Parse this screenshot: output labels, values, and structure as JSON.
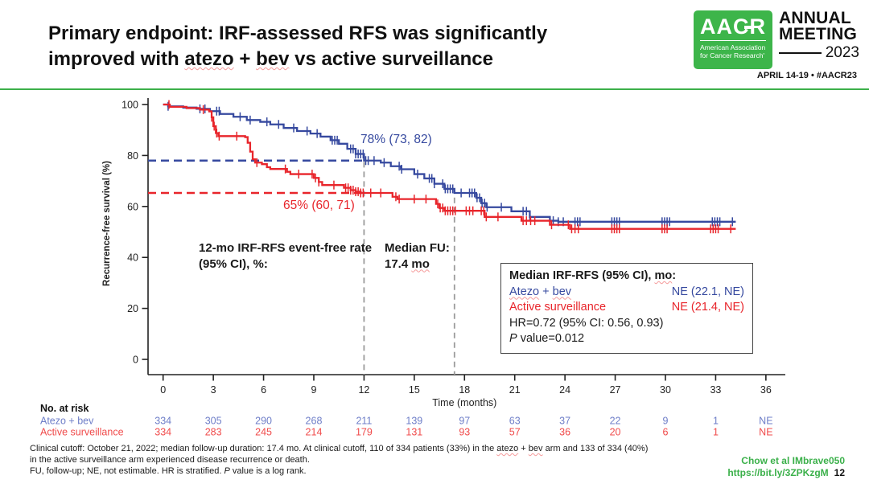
{
  "header": {
    "title_line1": "Primary endpoint: IRF-assessed RFS was significantly",
    "title_line2_prefix": "improved with ",
    "title_atezo": "atezo",
    "title_plus": " + ",
    "title_bev": "bev",
    "title_line2_suffix": " vs active surveillance"
  },
  "logo": {
    "acronym": "AACR",
    "tagline_line1": "American Association",
    "tagline_line2": "for Cancer Research'",
    "meeting_word1": "ANNUAL",
    "meeting_word2": "MEETING",
    "year": "2023",
    "dates": "APRIL 14-19 • #AACR23",
    "green": "#3db54a"
  },
  "rule_color": "#3cb04a",
  "annotations": {
    "atezo_rate": "78% (73, 82)",
    "surveillance_rate": "65% (60, 71)",
    "rate_label": "12-mo IRF-RFS event-free rate (95% CI), %:",
    "median_fu_line1": "Median FU:",
    "median_fu_value": "17.4 ",
    "median_fu_unit": "mo"
  },
  "stats_box": {
    "title_prefix": "Median IRF-RFS (95% CI), ",
    "title_mo": "mo",
    "title_colon": ":",
    "row1_label_a": "Atezo",
    "row1_label_plus": " + ",
    "row1_label_b": "bev",
    "row1_value": "NE (22.1, NE)",
    "row2_label": "Active surveillance",
    "row2_value": "NE (21.4, NE)",
    "hr_line": "HR=0.72 (95% CI: 0.56, 0.93)",
    "p_italic": "P",
    "p_rest": " value=0.012"
  },
  "footnote": {
    "line1_a": "Clinical cutoff: October 21, 2022; median follow-up duration: 17.4 mo. At clinical cutoff, 110 of 334 patients (33%) in the ",
    "line1_atezo": "atezo",
    "line1_plus": " + ",
    "line1_bev": "bev",
    "line1_b": " arm and 133 of 334 (40%)",
    "line2": "in the active surveillance arm experienced disease recurrence or death.",
    "line3_a": "FU, follow-up; NE, not estimable. HR is stratified. ",
    "line3_p": "P",
    "line3_b": " value is a log rank."
  },
  "citation": {
    "line1": "Chow et al IMbrave050",
    "line2": "https://bit.ly/3ZPKzgM",
    "page": "12",
    "color": "#3bb04a"
  },
  "chart_data": {
    "type": "line",
    "subtype": "kaplan-meier-step",
    "title": "",
    "xlabel": "Time (months)",
    "ylabel": "Recurrence-free survival (%)",
    "xlim": [
      0,
      36
    ],
    "ylim": [
      0,
      100
    ],
    "xticks": [
      0,
      3,
      6,
      9,
      12,
      15,
      18,
      21,
      24,
      27,
      30,
      33,
      36
    ],
    "yticks": [
      0,
      20,
      40,
      60,
      80,
      100
    ],
    "grid": false,
    "legend_position": "none",
    "vlines": [
      {
        "x": 12,
        "top_value": 77.5
      },
      {
        "x": 17.4,
        "top_value": 63.5
      }
    ],
    "risk_table": {
      "header": "No. at risk",
      "months": [
        0,
        3,
        6,
        9,
        12,
        15,
        18,
        21,
        24,
        27,
        30,
        33,
        36
      ]
    },
    "series": [
      {
        "name": "Atezo + bev",
        "color": "#36499f",
        "risk_color": "#6e7ec8",
        "annotation": "78% (73, 82)",
        "event_free_rate_12mo": 78,
        "dashed_reference_value": 78,
        "median_rfs": "NE (22.1, NE)",
        "steps": [
          [
            0,
            100
          ],
          [
            0.3,
            99.3
          ],
          [
            1.2,
            98.8
          ],
          [
            2,
            98.3
          ],
          [
            2.8,
            97.4
          ],
          [
            3.4,
            96.3
          ],
          [
            4.2,
            95.2
          ],
          [
            5,
            93.9
          ],
          [
            5.8,
            93.2
          ],
          [
            6.4,
            92.2
          ],
          [
            7.2,
            90.8
          ],
          [
            8,
            89.6
          ],
          [
            8.8,
            88.6
          ],
          [
            9.4,
            87.4
          ],
          [
            10,
            86
          ],
          [
            10.5,
            84.6
          ],
          [
            11,
            82.6
          ],
          [
            11.5,
            80.6
          ],
          [
            12,
            78
          ],
          [
            13,
            77.2
          ],
          [
            13.6,
            75.8
          ],
          [
            14.2,
            74.6
          ],
          [
            15,
            72.7
          ],
          [
            15.6,
            71
          ],
          [
            16.2,
            68.9
          ],
          [
            16.8,
            66.9
          ],
          [
            17.4,
            65.3
          ],
          [
            18.7,
            63.4
          ],
          [
            19,
            61.3
          ],
          [
            19.3,
            59.7
          ],
          [
            20.8,
            58.1
          ],
          [
            21.9,
            55.9
          ],
          [
            23.1,
            54.4
          ],
          [
            23.6,
            54
          ],
          [
            34.2,
            54
          ]
        ],
        "censors": [
          0.3,
          2.2,
          2.5,
          3.2,
          3.35,
          4.6,
          5.2,
          6.2,
          6.9,
          7.8,
          8.6,
          9.2,
          10.1,
          10.25,
          10.4,
          11.2,
          11.35,
          11.5,
          11.65,
          11.8,
          11.95,
          12.1,
          12.25,
          12.6,
          13.2,
          14.1,
          14.25,
          15.2,
          15.9,
          16.05,
          16.2,
          16.7,
          16.85,
          17,
          17.15,
          17.3,
          17.8,
          18.3,
          18.45,
          18.6,
          18.75,
          18.9,
          19.05,
          19.2,
          19.35,
          20.2,
          21.5,
          21.7,
          21.9,
          23.3,
          23.6,
          23.9,
          24.6,
          24.75,
          24.9,
          26.8,
          26.95,
          27.1,
          27.25,
          29.8,
          29.95,
          30.1,
          30.25,
          32.8,
          32.95,
          33.1,
          33.25,
          34
        ],
        "risk": [
          "334",
          "305",
          "290",
          "268",
          "211",
          "139",
          "97",
          "63",
          "37",
          "22",
          "9",
          "1",
          "NE"
        ]
      },
      {
        "name": "Active surveillance",
        "color": "#e8252b",
        "risk_color": "#f04b4b",
        "annotation": "65% (60, 71)",
        "event_free_rate_12mo": 65,
        "dashed_reference_value": 65.3,
        "median_rfs": "NE (21.4, NE)",
        "steps": [
          [
            0,
            100
          ],
          [
            0.4,
            99.1
          ],
          [
            1.4,
            98.6
          ],
          [
            2.2,
            98
          ],
          [
            2.75,
            97.3
          ],
          [
            2.9,
            95
          ],
          [
            3,
            91.5
          ],
          [
            3.15,
            88.8
          ],
          [
            3.3,
            87.6
          ],
          [
            4.9,
            87.2
          ],
          [
            5.05,
            85
          ],
          [
            5.2,
            81.5
          ],
          [
            5.35,
            78.5
          ],
          [
            5.5,
            77.2
          ],
          [
            5.9,
            76.6
          ],
          [
            6.2,
            75.4
          ],
          [
            6.4,
            74.7
          ],
          [
            7.4,
            73.6
          ],
          [
            7.6,
            72.7
          ],
          [
            9,
            71.2
          ],
          [
            9.3,
            69.6
          ],
          [
            9.5,
            68.4
          ],
          [
            10.8,
            67.3
          ],
          [
            11.2,
            66.4
          ],
          [
            11.5,
            65.8
          ],
          [
            11.8,
            65.3
          ],
          [
            13.7,
            63.8
          ],
          [
            14,
            62.9
          ],
          [
            16.3,
            61
          ],
          [
            16.5,
            59.4
          ],
          [
            16.8,
            58.3
          ],
          [
            19.2,
            55.9
          ],
          [
            21.4,
            54.4
          ],
          [
            23.1,
            52.8
          ],
          [
            24.3,
            51.2
          ],
          [
            34.2,
            51.2
          ]
        ],
        "censors": [
          0.35,
          2.4,
          2.9,
          3.05,
          3.2,
          3.35,
          4.4,
          5.6,
          7.3,
          8.1,
          8.9,
          9.1,
          9.3,
          10.2,
          10.9,
          11.05,
          11.2,
          11.35,
          11.5,
          11.65,
          11.8,
          11.95,
          12.4,
          13,
          13.9,
          14.1,
          15,
          15.7,
          16.4,
          16.55,
          16.7,
          16.85,
          17,
          17.15,
          17.3,
          17.45,
          18.1,
          18.3,
          18.5,
          19,
          19.15,
          19.3,
          20,
          21.5,
          21.7,
          21.95,
          22.2,
          23.2,
          24.2,
          24.4,
          24.6,
          24.8,
          26.8,
          26.95,
          27.1,
          27.25,
          29.8,
          29.95,
          30.1,
          32.7,
          32.85,
          33,
          33.15,
          33.9
        ],
        "risk": [
          "334",
          "283",
          "245",
          "214",
          "179",
          "131",
          "93",
          "57",
          "36",
          "20",
          "6",
          "1",
          "NE"
        ]
      }
    ]
  }
}
